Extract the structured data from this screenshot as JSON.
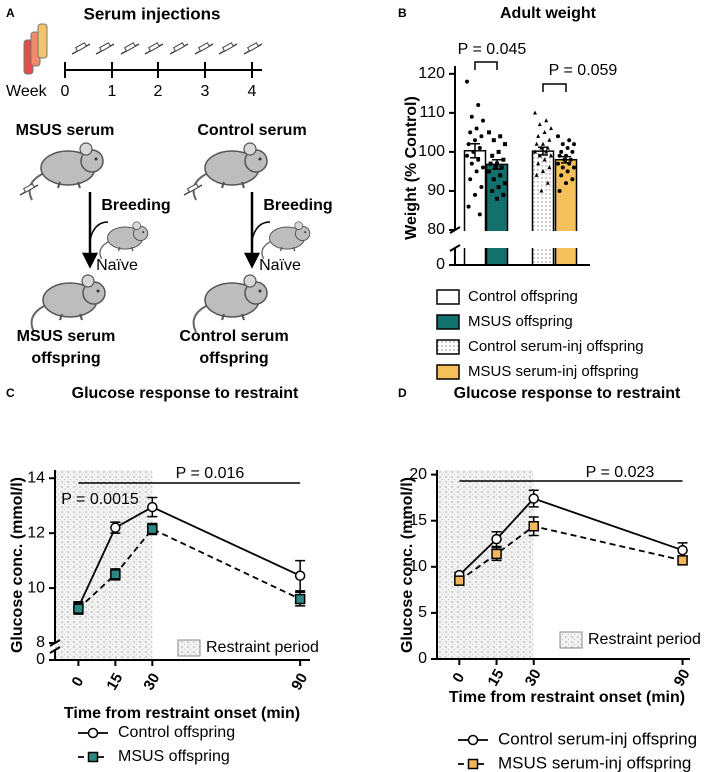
{
  "diagram": {
    "panel": "A",
    "title": "Serum injections",
    "week_label": "Week",
    "weeks": [
      "0",
      "1",
      "2",
      "3",
      "4"
    ],
    "groups": [
      {
        "name": "MSUS serum",
        "breeding": "Breeding",
        "naive": "Naïve",
        "offspring": [
          "MSUS serum",
          "offspring"
        ]
      },
      {
        "name": "Control serum",
        "breeding": "Breeding",
        "naive": "Naïve",
        "offspring": [
          "Control serum",
          "offspring"
        ]
      }
    ]
  },
  "chart_data": [
    {
      "panel": "B",
      "type": "bar",
      "title": "Adult weight",
      "ylabel": "Weight (% Control)",
      "ylim": [
        0,
        122
      ],
      "ybreak": 80,
      "yticks": [
        0,
        80,
        90,
        100,
        110,
        120
      ],
      "legend": "below",
      "annotations": [
        "P = 0.045",
        "P = 0.059"
      ],
      "series": [
        {
          "name": "Control offspring",
          "color": "#ffffff",
          "pattern": "none",
          "marker": "circle",
          "value": 100.3,
          "error": 1.8,
          "points": [
            118,
            112,
            109,
            108,
            106,
            105,
            104,
            103,
            102,
            101,
            100,
            99,
            98,
            97,
            96,
            95,
            93,
            91,
            89,
            86,
            84
          ]
        },
        {
          "name": "MSUS offspring",
          "color": "#12706d",
          "pattern": "none",
          "marker": "square",
          "value": 96.8,
          "error": 1.2,
          "points": [
            105,
            104,
            103,
            102,
            100,
            99,
            98,
            97,
            97,
            96,
            96,
            95,
            94,
            93,
            92,
            91,
            90,
            89,
            88
          ]
        },
        {
          "name": "Control serum-inj offspring",
          "color": "#ffffff",
          "pattern": "dots",
          "marker": "triangle",
          "value": 100.2,
          "error": 1.0,
          "points": [
            110,
            108,
            107,
            106,
            105,
            104,
            103,
            102,
            102,
            101,
            101,
            100,
            100,
            99,
            99,
            98,
            97,
            96,
            95,
            94,
            92,
            90
          ]
        },
        {
          "name": "MSUS serum-inj offspring",
          "color": "#f6c15b",
          "pattern": "none",
          "marker": "circle",
          "value": 98.0,
          "error": 0.8,
          "points": [
            104,
            103,
            102,
            102,
            101,
            100,
            100,
            99,
            99,
            98,
            98,
            97,
            97,
            96,
            96,
            95,
            94,
            93,
            92,
            90
          ]
        }
      ]
    },
    {
      "panel": "C",
      "type": "line",
      "title": "Glucose response to restraint",
      "xlabel": "Time from restraint onset (min)",
      "ylabel": "Glucose conc. (mmol/l)",
      "x": [
        0,
        15,
        30,
        90
      ],
      "xlim": [
        -9.5,
        94
      ],
      "xticks": [
        0,
        15,
        30,
        90
      ],
      "ylim": [
        0,
        14.3
      ],
      "ybreak": 8,
      "yticks": [
        0,
        8,
        10,
        12,
        14
      ],
      "restraint_end": 30,
      "restraint_label": "Restraint period",
      "annotations": [
        "P = 0.016",
        "P = 0.0015"
      ],
      "legend": "below",
      "series": [
        {
          "name": "Control offspring",
          "color": "#000000",
          "marker": "circle",
          "marker_fill": "#ffffff",
          "dash": false,
          "values": [
            9.3,
            12.2,
            12.95,
            10.45
          ],
          "errors": [
            0.2,
            0.2,
            0.35,
            0.55
          ]
        },
        {
          "name": "MSUS offspring",
          "color": "#000000",
          "marker": "square",
          "marker_fill": "#2a8784",
          "dash": true,
          "values": [
            9.25,
            10.5,
            12.15,
            9.6
          ],
          "errors": [
            0.2,
            0.2,
            0.2,
            0.25
          ]
        }
      ]
    },
    {
      "panel": "D",
      "type": "line",
      "title": "Glucose response to restraint",
      "xlabel": "Time from restraint onset (min)",
      "ylabel": "Glucose conc. (mmol/l)",
      "x": [
        0,
        15,
        30,
        90
      ],
      "xlim": [
        -9,
        93
      ],
      "xticks": [
        0,
        15,
        30,
        90
      ],
      "ylim": [
        0,
        20.5
      ],
      "yticks": [
        0,
        5,
        10,
        15,
        20
      ],
      "restraint_end": 30,
      "restraint_label": "Restraint period",
      "annotations": [
        "P = 0.023"
      ],
      "legend": "below",
      "series": [
        {
          "name": "Control serum-inj offspring",
          "color": "#000000",
          "marker": "circle",
          "marker_fill": "#ffffff",
          "dash": false,
          "values": [
            9.1,
            13.0,
            17.4,
            11.8
          ],
          "errors": [
            0.3,
            0.8,
            0.9,
            0.8
          ]
        },
        {
          "name": "MSUS serum-inj offspring",
          "color": "#000000",
          "marker": "square",
          "marker_fill": "#f2b65c",
          "dash": true,
          "values": [
            8.5,
            11.4,
            14.4,
            10.7
          ],
          "errors": [
            0.3,
            0.7,
            1.0,
            0.4
          ]
        }
      ]
    }
  ]
}
